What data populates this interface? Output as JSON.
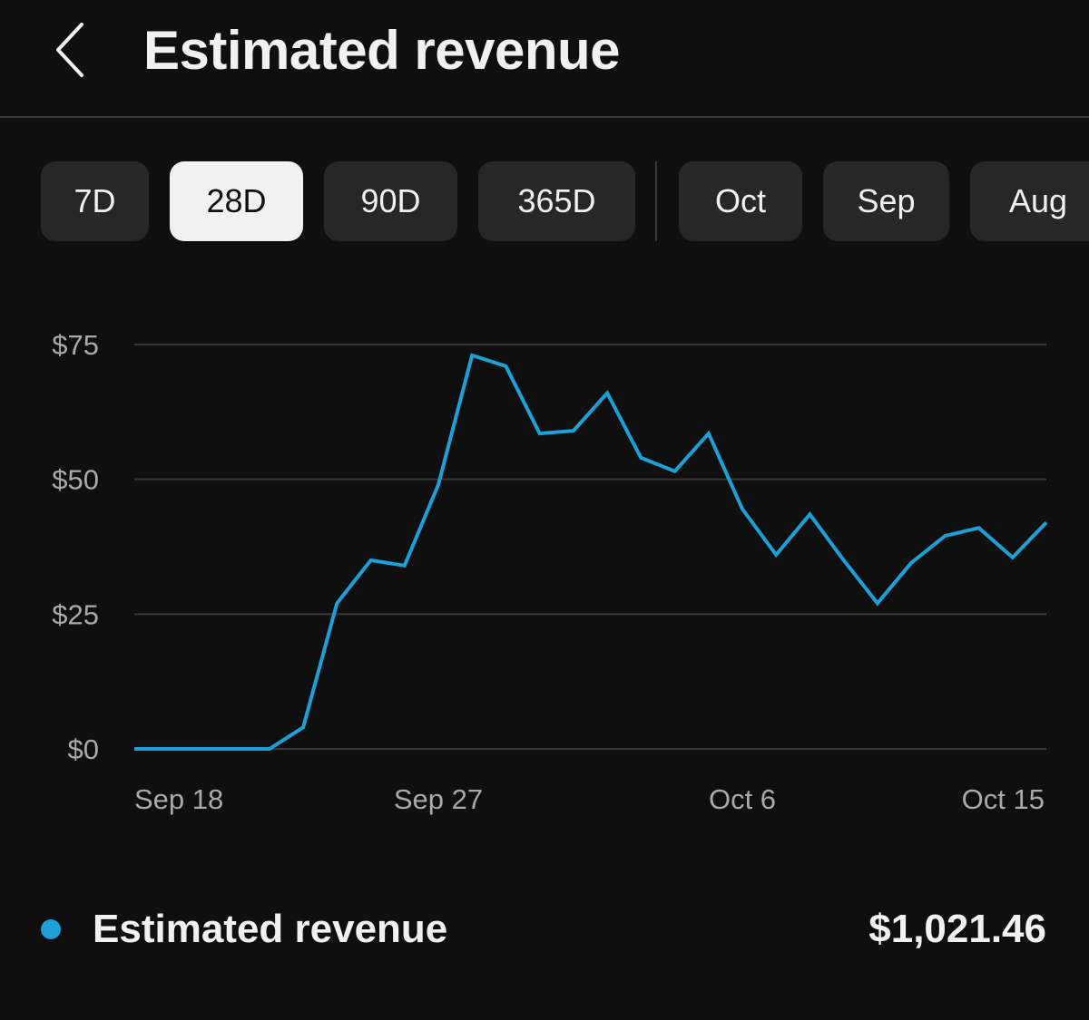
{
  "header": {
    "title": "Estimated revenue",
    "back_icon": "chevron-left-icon"
  },
  "chips": [
    {
      "label": "7D",
      "selected": false
    },
    {
      "label": "28D",
      "selected": true
    },
    {
      "label": "90D",
      "selected": false
    },
    {
      "label": "365D",
      "selected": false
    },
    {
      "label": "Oct",
      "selected": false
    },
    {
      "label": "Sep",
      "selected": false
    },
    {
      "label": "Aug",
      "selected": false
    }
  ],
  "colors": {
    "background": "#0f0f0f",
    "series": "#1ca0d6",
    "gridline": "#3a3a3a",
    "chip_bg": "#272727",
    "chip_selected_bg": "#f1f1f1"
  },
  "chart_data": {
    "type": "line",
    "title": "",
    "xlabel": "",
    "ylabel": "",
    "ylim": [
      0,
      75
    ],
    "yticks": [
      0,
      25,
      50,
      75
    ],
    "ytick_labels": [
      "$0",
      "$25",
      "$50",
      "$75"
    ],
    "x": [
      "Sep 18",
      "Sep 19",
      "Sep 20",
      "Sep 21",
      "Sep 22",
      "Sep 23",
      "Sep 24",
      "Sep 25",
      "Sep 26",
      "Sep 27",
      "Sep 28",
      "Sep 29",
      "Sep 30",
      "Oct 1",
      "Oct 2",
      "Oct 3",
      "Oct 4",
      "Oct 5",
      "Oct 6",
      "Oct 7",
      "Oct 8",
      "Oct 9",
      "Oct 10",
      "Oct 11",
      "Oct 12",
      "Oct 13",
      "Oct 14",
      "Oct 15"
    ],
    "xtick_labels": [
      "Sep 18",
      "Sep 27",
      "Oct 6",
      "Oct 15"
    ],
    "series": [
      {
        "name": "Estimated revenue",
        "values": [
          0,
          0,
          0,
          0,
          0,
          4,
          27,
          35,
          34,
          49,
          73,
          71,
          58.5,
          59,
          66,
          54,
          51.5,
          58.5,
          44.5,
          36,
          43.5,
          35,
          27,
          34.5,
          39.5,
          41,
          35.5,
          42
        ]
      }
    ]
  },
  "legend": {
    "label": "Estimated revenue",
    "total": "$1,021.46"
  }
}
